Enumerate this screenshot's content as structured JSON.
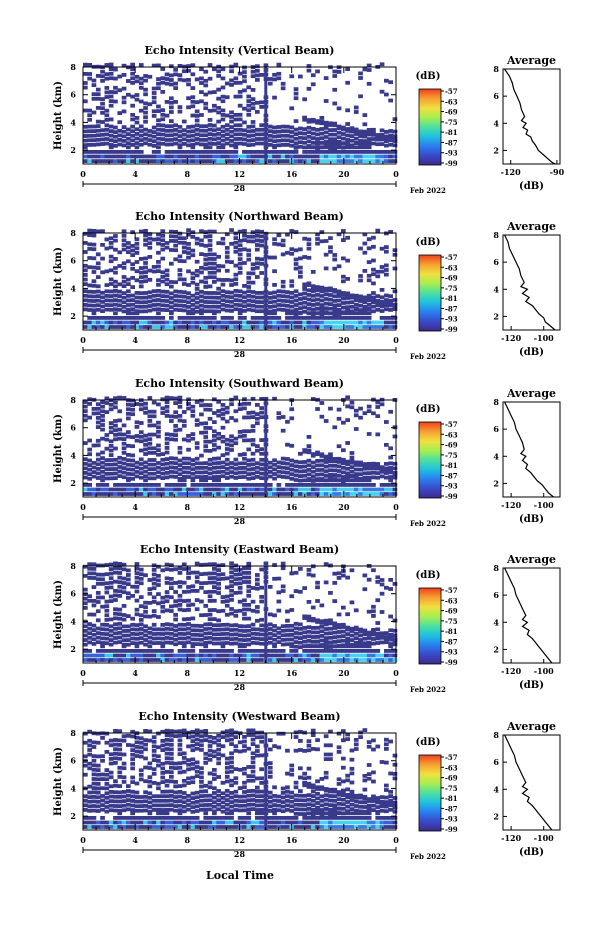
{
  "figure": {
    "xlabel": "Local Time",
    "date_label": "Feb 2022",
    "day_label": "28",
    "colorbar_unit": "(dB)",
    "colorbar_ticks": [
      "-57",
      "-63",
      "-69",
      "-75",
      "-81",
      "-87",
      "-93",
      "-99"
    ],
    "colorbar_colors": [
      "#3d2a8c",
      "#3a49c8",
      "#2a7ff0",
      "#1fc0e0",
      "#4ce0a0",
      "#a8ee50",
      "#f0e040",
      "#f7a030",
      "#ee4020"
    ]
  },
  "chart_data": [
    {
      "type": "heatmap",
      "title": "Echo Intensity (Vertical Beam)",
      "ylabel": "Height (km)",
      "xticks": [
        "0",
        "4",
        "8",
        "12",
        "16",
        "20",
        "0"
      ],
      "yticks": [
        "2",
        "4",
        "6",
        "8"
      ],
      "xlim": [
        0,
        24
      ],
      "ylim": [
        1,
        8
      ],
      "profile": {
        "title": "Average",
        "xlabel": "(dB)",
        "xticks": [
          "-120",
          "-90"
        ],
        "xlim": [
          -125,
          -88
        ],
        "points": [
          [
            8,
            -124
          ],
          [
            7.5,
            -121
          ],
          [
            7,
            -119
          ],
          [
            6.5,
            -118
          ],
          [
            6,
            -116
          ],
          [
            5.5,
            -114
          ],
          [
            5,
            -113
          ],
          [
            4.5,
            -111
          ],
          [
            4.2,
            -113
          ],
          [
            4,
            -110
          ],
          [
            3.7,
            -112
          ],
          [
            3.5,
            -109
          ],
          [
            3.2,
            -110
          ],
          [
            3,
            -107
          ],
          [
            2.7,
            -106
          ],
          [
            2.4,
            -104
          ],
          [
            2,
            -102
          ],
          [
            1.7,
            -99
          ],
          [
            1.4,
            -96
          ],
          [
            1.1,
            -93
          ],
          [
            1,
            -91
          ]
        ]
      }
    },
    {
      "type": "heatmap",
      "title": "Echo Intensity (Northward Beam)",
      "ylabel": "Height (km)",
      "xticks": [
        "0",
        "4",
        "8",
        "12",
        "16",
        "20",
        "0"
      ],
      "yticks": [
        "2",
        "4",
        "6",
        "8"
      ],
      "xlim": [
        0,
        24
      ],
      "ylim": [
        1,
        8
      ],
      "profile": {
        "title": "Average",
        "xlabel": "(dB)",
        "xticks": [
          "-120",
          "-100"
        ],
        "xlim": [
          -125,
          -90
        ],
        "points": [
          [
            8,
            -124
          ],
          [
            7.5,
            -122
          ],
          [
            7,
            -121
          ],
          [
            6.5,
            -119
          ],
          [
            6,
            -117
          ],
          [
            5.5,
            -115
          ],
          [
            5,
            -114
          ],
          [
            4.5,
            -112
          ],
          [
            4.2,
            -114
          ],
          [
            4,
            -110
          ],
          [
            3.7,
            -113
          ],
          [
            3.4,
            -109
          ],
          [
            3.1,
            -111
          ],
          [
            2.8,
            -107
          ],
          [
            2.5,
            -105
          ],
          [
            2.2,
            -103
          ],
          [
            1.9,
            -100
          ],
          [
            1.6,
            -99
          ],
          [
            1.3,
            -96
          ],
          [
            1,
            -93
          ]
        ]
      }
    },
    {
      "type": "heatmap",
      "title": "Echo Intensity (Southward Beam)",
      "ylabel": "Height (km)",
      "xticks": [
        "0",
        "4",
        "8",
        "12",
        "16",
        "20",
        "0"
      ],
      "yticks": [
        "2",
        "4",
        "6",
        "8"
      ],
      "xlim": [
        0,
        24
      ],
      "ylim": [
        1,
        8
      ],
      "profile": {
        "title": "Average",
        "xlabel": "(dB)",
        "xticks": [
          "-120",
          "-100"
        ],
        "xlim": [
          -125,
          -90
        ],
        "points": [
          [
            8,
            -124
          ],
          [
            7.5,
            -122
          ],
          [
            7,
            -120
          ],
          [
            6.5,
            -118
          ],
          [
            6,
            -117
          ],
          [
            5.5,
            -115
          ],
          [
            5,
            -113
          ],
          [
            4.5,
            -112
          ],
          [
            4.2,
            -114
          ],
          [
            4,
            -111
          ],
          [
            3.7,
            -113
          ],
          [
            3.4,
            -110
          ],
          [
            3.1,
            -111
          ],
          [
            2.8,
            -108
          ],
          [
            2.5,
            -106
          ],
          [
            2.2,
            -104
          ],
          [
            1.9,
            -101
          ],
          [
            1.6,
            -99
          ],
          [
            1.3,
            -97
          ],
          [
            1,
            -94
          ]
        ]
      }
    },
    {
      "type": "heatmap",
      "title": "Echo Intensity (Eastward Beam)",
      "ylabel": "Height (km)",
      "xticks": [
        "0",
        "4",
        "8",
        "12",
        "16",
        "20",
        "0"
      ],
      "yticks": [
        "2",
        "4",
        "6",
        "8"
      ],
      "xlim": [
        0,
        24
      ],
      "ylim": [
        1,
        8
      ],
      "profile": {
        "title": "Average",
        "xlabel": "(dB)",
        "xticks": [
          "-120",
          "-100"
        ],
        "xlim": [
          -125,
          -90
        ],
        "points": [
          [
            8,
            -124
          ],
          [
            7.5,
            -122
          ],
          [
            7,
            -120
          ],
          [
            6.5,
            -118
          ],
          [
            6,
            -117
          ],
          [
            5.5,
            -115
          ],
          [
            5,
            -113
          ],
          [
            4.5,
            -111
          ],
          [
            4.2,
            -113
          ],
          [
            4,
            -110
          ],
          [
            3.7,
            -113
          ],
          [
            3.4,
            -109
          ],
          [
            3.1,
            -110
          ],
          [
            2.8,
            -107
          ],
          [
            2.5,
            -105
          ],
          [
            2.2,
            -103
          ],
          [
            1.9,
            -101
          ],
          [
            1.6,
            -99
          ],
          [
            1.3,
            -97
          ],
          [
            1,
            -95
          ]
        ]
      }
    },
    {
      "type": "heatmap",
      "title": "Echo Intensity (Westward Beam)",
      "ylabel": "Height (km)",
      "xticks": [
        "0",
        "4",
        "8",
        "12",
        "16",
        "20",
        "0"
      ],
      "yticks": [
        "2",
        "4",
        "6",
        "8"
      ],
      "xlim": [
        0,
        24
      ],
      "ylim": [
        1,
        8
      ],
      "profile": {
        "title": "Average",
        "xlabel": "(dB)",
        "xticks": [
          "-120",
          "-100"
        ],
        "xlim": [
          -125,
          -90
        ],
        "points": [
          [
            8,
            -124
          ],
          [
            7.5,
            -122
          ],
          [
            7,
            -120
          ],
          [
            6.5,
            -118
          ],
          [
            6,
            -117
          ],
          [
            5.5,
            -115
          ],
          [
            5,
            -113
          ],
          [
            4.5,
            -111
          ],
          [
            4.2,
            -113
          ],
          [
            4,
            -110
          ],
          [
            3.7,
            -113
          ],
          [
            3.4,
            -109
          ],
          [
            3.1,
            -110
          ],
          [
            2.8,
            -107
          ],
          [
            2.5,
            -105
          ],
          [
            2.2,
            -103
          ],
          [
            1.9,
            -101
          ],
          [
            1.6,
            -99
          ],
          [
            1.3,
            -97
          ],
          [
            1,
            -95
          ]
        ]
      }
    }
  ]
}
